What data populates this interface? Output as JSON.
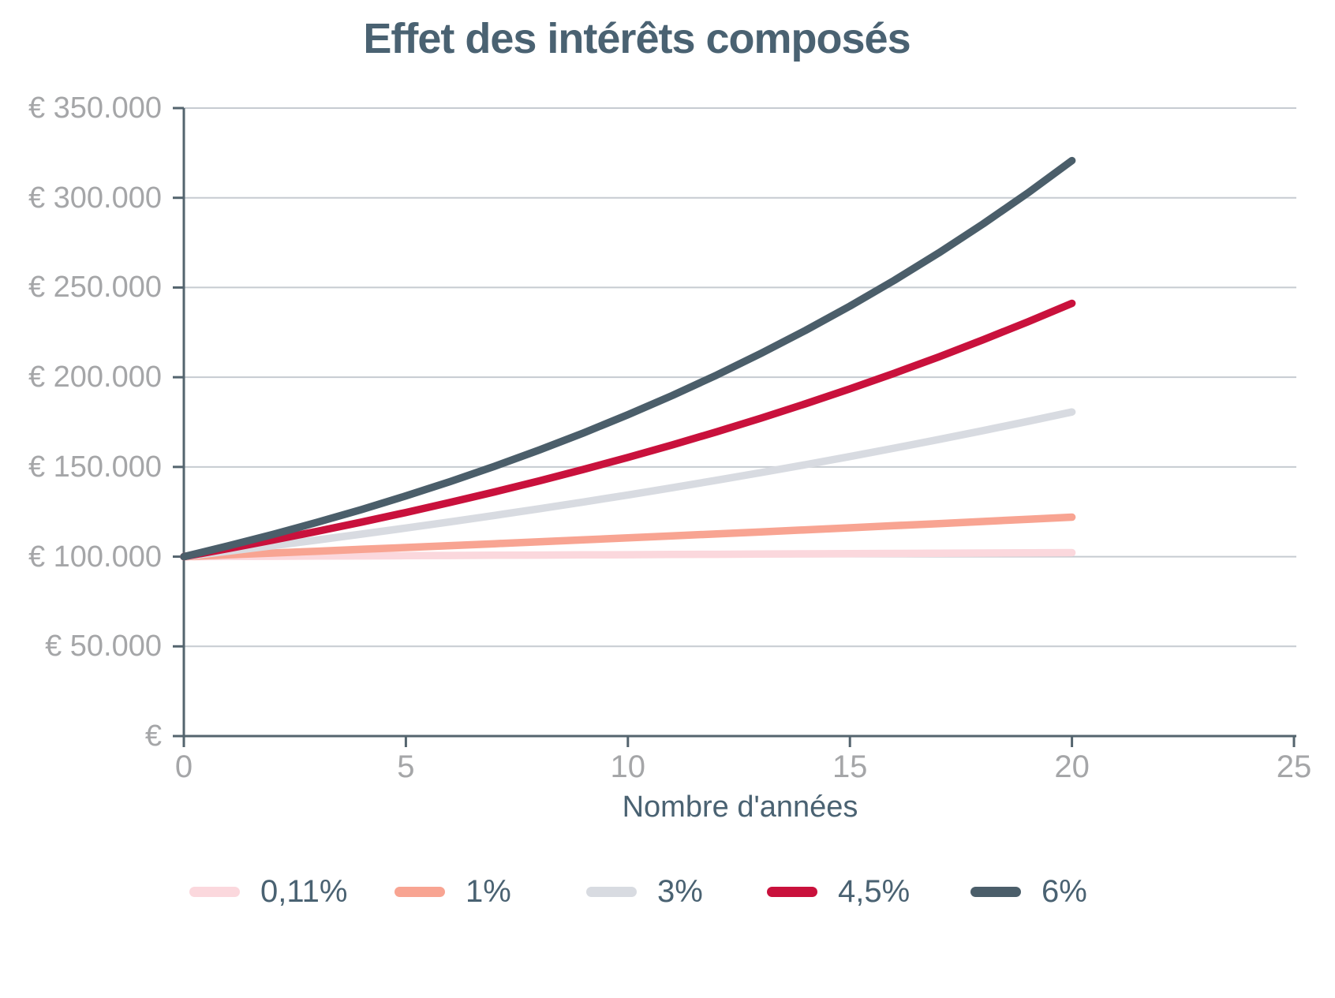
{
  "title": "Effet des intérêts composés",
  "colors": {
    "background": "#ffffff",
    "title_text": "#4a6272",
    "axis_label_text": "#4a6272",
    "tick_label_text": "#a5a6a8",
    "axis_line": "#54646e",
    "gridline": "#c6cbd1"
  },
  "chart_data": {
    "type": "line",
    "title": "Effet des intérêts composés",
    "xlabel": "Nombre d'années",
    "ylabel": "",
    "xlim": [
      0,
      25
    ],
    "ylim": [
      0,
      350000
    ],
    "grid": "horizontal",
    "legend_position": "bottom",
    "x_ticks": [
      0,
      5,
      10,
      15,
      20,
      25
    ],
    "x_tick_labels": [
      "0",
      "5",
      "10",
      "15",
      "20",
      "25"
    ],
    "y_ticks": [
      0,
      50000,
      100000,
      150000,
      200000,
      250000,
      300000,
      350000
    ],
    "y_tick_labels": [
      "€",
      "€ 50.000",
      "€ 100.000",
      "€ 150.000",
      "€ 200.000",
      "€ 250.000",
      "€ 300.000",
      "€ 350.000"
    ],
    "principal": 100000,
    "x": [
      0,
      1,
      2,
      3,
      4,
      5,
      6,
      7,
      8,
      9,
      10,
      11,
      12,
      13,
      14,
      15,
      16,
      17,
      18,
      19,
      20
    ],
    "series": [
      {
        "name": "0,11%",
        "rate_percent": 0.11,
        "color": "#fbd8dd",
        "values": [
          100000,
          100110,
          100220,
          100330,
          100441,
          100551,
          100662,
          100773,
          100883,
          100994,
          101105,
          101217,
          101328,
          101439,
          101551,
          101663,
          101775,
          101887,
          101999,
          102111,
          102223
        ]
      },
      {
        "name": "1%",
        "rate_percent": 1,
        "color": "#f8a492",
        "values": [
          100000,
          101000,
          102010,
          103030,
          104060,
          105101,
          106152,
          107214,
          108286,
          109369,
          110462,
          111567,
          112683,
          113809,
          114947,
          116097,
          117258,
          118430,
          119615,
          120811,
          122019
        ]
      },
      {
        "name": "3%",
        "rate_percent": 3,
        "color": "#d8dbe1",
        "values": [
          100000,
          103000,
          106090,
          109273,
          112551,
          115927,
          119405,
          122987,
          126677,
          130477,
          134392,
          138423,
          142576,
          146853,
          151259,
          155797,
          160471,
          165285,
          170243,
          175351,
          180611
        ]
      },
      {
        "name": "4,5%",
        "rate_percent": 4.5,
        "color": "#c9113c",
        "values": [
          100000,
          104500,
          109203,
          114117,
          119252,
          124618,
          130226,
          136086,
          142210,
          148610,
          155297,
          162285,
          169588,
          177220,
          185194,
          193528,
          202237,
          211338,
          220848,
          230786,
          241171
        ]
      },
      {
        "name": "6%",
        "rate_percent": 6,
        "color": "#4b5e6a",
        "values": [
          100000,
          106000,
          112360,
          119102,
          126248,
          133823,
          141852,
          150363,
          159385,
          168948,
          179085,
          189830,
          201220,
          213293,
          226090,
          239656,
          254035,
          269277,
          285434,
          302560,
          320714
        ]
      }
    ]
  }
}
